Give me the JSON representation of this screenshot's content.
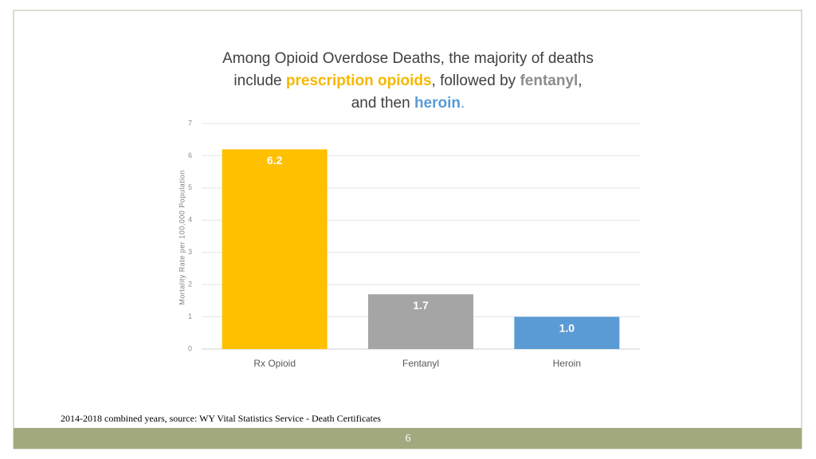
{
  "chart_data": {
    "type": "bar",
    "title_parts": [
      {
        "text": "Among Opioid Overdose Deaths, the majority of deaths include ",
        "color": "#404040"
      },
      {
        "text": "prescription opioids",
        "color": "#f5b800"
      },
      {
        "text": ", followed by ",
        "color": "#404040"
      },
      {
        "text": "fentanyl",
        "color": "#8c8c8c"
      },
      {
        "text": ", and then ",
        "color": "#404040"
      },
      {
        "text": "heroin",
        "color": "#5b9bd5"
      },
      {
        "text": ".",
        "color": "#5b9bd5"
      }
    ],
    "y_label": "Mortality Rate per 100,000 Population",
    "categories": [
      "Rx Opioid",
      "Fentanyl",
      "Heroin"
    ],
    "values": [
      6.2,
      1.7,
      1.0
    ],
    "value_labels": [
      "6.2",
      "1.7",
      "1.0"
    ],
    "colors": [
      "#ffc000",
      "#a5a5a5",
      "#5b9bd5"
    ],
    "ylim": [
      0,
      7
    ],
    "yticks": [
      0,
      1,
      2,
      3,
      4,
      5,
      6,
      7
    ],
    "grid": true
  },
  "footer": {
    "source": "2014-2018 combined years, source: WY Vital Statistics Service - Death Certificates",
    "page_number": "6"
  }
}
